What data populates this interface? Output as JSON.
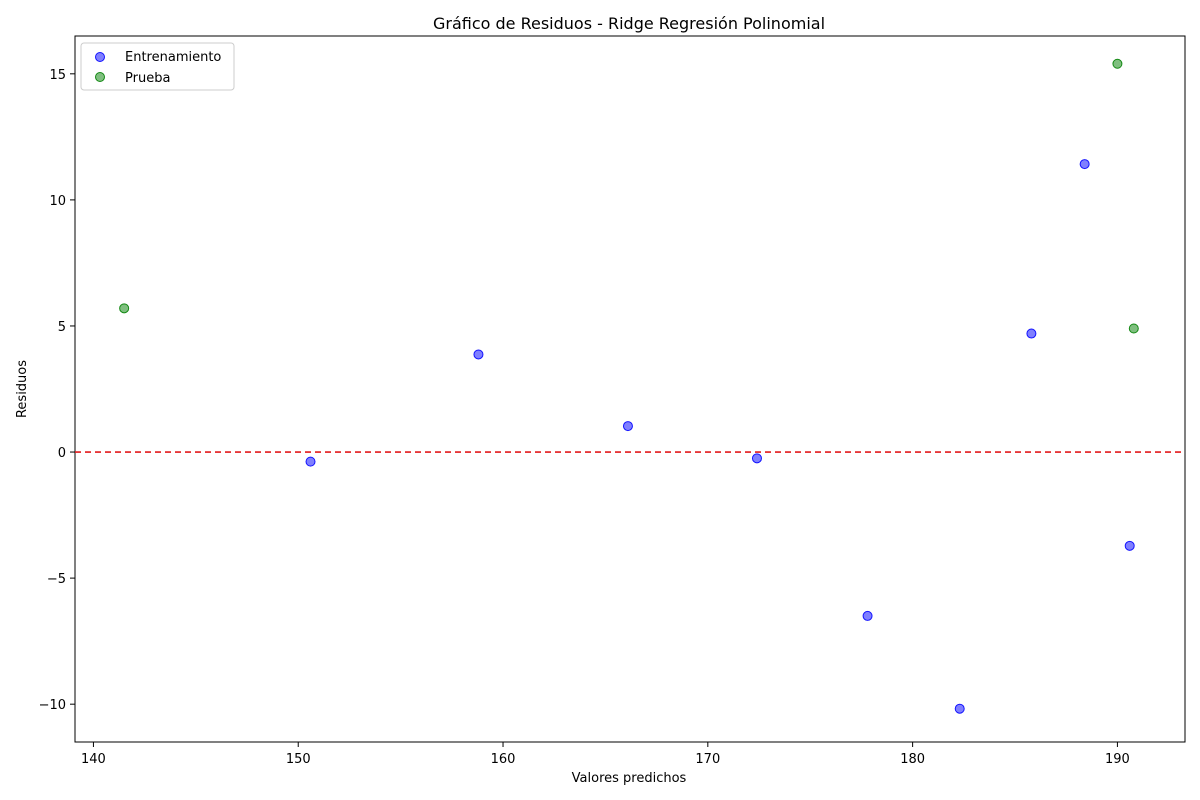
{
  "chart_data": {
    "type": "scatter",
    "title": "Gráfico de Residuos - Ridge Regresión Polinomial",
    "xlabel": "Valores predichos",
    "ylabel": "Residuos",
    "xlim": [
      139.1,
      193.3
    ],
    "ylim": [
      -11.5,
      16.5
    ],
    "xticks": [
      140,
      150,
      160,
      170,
      180,
      190
    ],
    "yticks": [
      -10,
      -5,
      0,
      5,
      10,
      15
    ],
    "xtick_labels": [
      "140",
      "150",
      "160",
      "170",
      "180",
      "190"
    ],
    "ytick_labels": [
      "−10",
      "−5",
      "0",
      "5",
      "10",
      "15"
    ],
    "grid": false,
    "legend_position": "top-left",
    "reference_line": {
      "y": 0,
      "color": "#e31a1c",
      "style": "dashed"
    },
    "series": [
      {
        "name": "Entrenamiento",
        "color": "#0000ff",
        "x": [
          150.6,
          158.8,
          166.1,
          172.4,
          177.8,
          182.3,
          185.8,
          188.4,
          190.6
        ],
        "y": [
          -0.38,
          3.87,
          1.03,
          -0.25,
          -6.5,
          -10.18,
          4.7,
          11.42,
          -3.72
        ]
      },
      {
        "name": "Prueba",
        "color": "#008000",
        "x": [
          141.5,
          190.0,
          190.8
        ],
        "y": [
          5.7,
          15.4,
          4.9
        ]
      }
    ]
  }
}
